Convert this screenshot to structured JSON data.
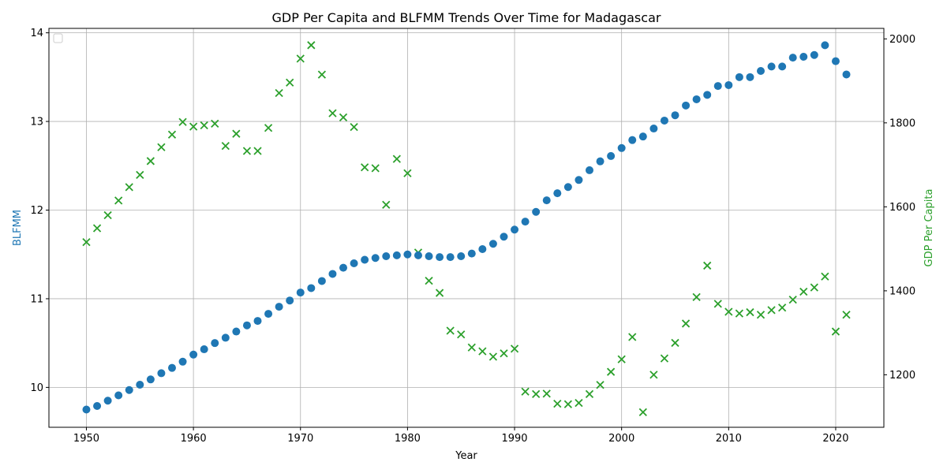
{
  "chart_data": {
    "type": "scatter",
    "title": "GDP Per Capita and BLFMM Trends Over Time for Madagascar",
    "xlabel": "Year",
    "ylabel_left": "BLFMM",
    "ylabel_right": "GDP Per Capita",
    "xlim": [
      1946.5,
      2024.5
    ],
    "ylim_left": [
      9.55,
      14.05
    ],
    "ylim_right": [
      1075,
      2025
    ],
    "xticks": [
      1950,
      1960,
      1970,
      1980,
      1990,
      2000,
      2010,
      2020
    ],
    "yticks_left": [
      10,
      11,
      12,
      13,
      14
    ],
    "yticks_right": [
      1200,
      1400,
      1600,
      1800,
      2000
    ],
    "grid": true,
    "legend": "top-left (empty)",
    "colors": {
      "blfmm": "#1f77b4",
      "gdp": "#2ca02c"
    },
    "series": [
      {
        "axis": "left",
        "marker": "circle",
        "x": [
          1950,
          1951,
          1952,
          1953,
          1954,
          1955,
          1956,
          1957,
          1958,
          1959,
          1960,
          1961,
          1962,
          1963,
          1964,
          1965,
          1966,
          1967,
          1968,
          1969,
          1970,
          1971,
          1972,
          1973,
          1974,
          1975,
          1976,
          1977,
          1978,
          1979,
          1980,
          1981,
          1982,
          1983,
          1984,
          1985,
          1986,
          1987,
          1988,
          1989,
          1990,
          1991,
          1992,
          1993,
          1994,
          1995,
          1996,
          1997,
          1998,
          1999,
          2000,
          2001,
          2002,
          2003,
          2004,
          2005,
          2006,
          2007,
          2008,
          2009,
          2010,
          2011,
          2012,
          2013,
          2014,
          2015,
          2016,
          2017,
          2018,
          2019,
          2020,
          2021
        ],
        "values": [
          9.75,
          9.79,
          9.85,
          9.91,
          9.97,
          10.03,
          10.09,
          10.16,
          10.22,
          10.29,
          10.37,
          10.43,
          10.5,
          10.56,
          10.63,
          10.7,
          10.75,
          10.83,
          10.91,
          10.98,
          11.07,
          11.12,
          11.2,
          11.28,
          11.35,
          11.4,
          11.44,
          11.46,
          11.48,
          11.49,
          11.5,
          11.49,
          11.48,
          11.47,
          11.47,
          11.48,
          11.51,
          11.56,
          11.62,
          11.7,
          11.78,
          11.87,
          11.98,
          12.11,
          12.19,
          12.26,
          12.34,
          12.45,
          12.55,
          12.61,
          12.7,
          12.79,
          12.83,
          12.92,
          13.01,
          13.07,
          13.18,
          13.25,
          13.3,
          13.4,
          13.41,
          13.5,
          13.5,
          13.57,
          13.62,
          13.62,
          13.72,
          13.73,
          13.75,
          13.86,
          13.68,
          13.53
        ]
      },
      {
        "axis": "right",
        "marker": "x",
        "x": [
          1950,
          1951,
          1952,
          1953,
          1954,
          1955,
          1956,
          1957,
          1958,
          1959,
          1960,
          1961,
          1962,
          1963,
          1964,
          1965,
          1966,
          1967,
          1968,
          1969,
          1970,
          1971,
          1972,
          1973,
          1974,
          1975,
          1976,
          1977,
          1978,
          1979,
          1980,
          1981,
          1982,
          1983,
          1984,
          1985,
          1986,
          1987,
          1988,
          1989,
          1990,
          1991,
          1992,
          1993,
          1994,
          1995,
          1996,
          1997,
          1998,
          1999,
          2000,
          2001,
          2002,
          2003,
          2004,
          2005,
          2006,
          2007,
          2008,
          2009,
          2010,
          2011,
          2012,
          2013,
          2014,
          2015,
          2016,
          2017,
          2018,
          2019,
          2020,
          2021
        ],
        "values": [
          1516,
          1549,
          1580,
          1615,
          1647,
          1676,
          1709,
          1742,
          1772,
          1802,
          1791,
          1794,
          1798,
          1745,
          1774,
          1733,
          1733,
          1788,
          1871,
          1896,
          1953,
          1985,
          1915,
          1823,
          1813,
          1790,
          1694,
          1692,
          1605,
          1714,
          1680,
          1491,
          1424,
          1395,
          1305,
          1296,
          1265,
          1256,
          1243,
          1251,
          1262,
          1160,
          1154,
          1155,
          1131,
          1130,
          1133,
          1154,
          1176,
          1207,
          1237,
          1290,
          1111,
          1200,
          1239,
          1276,
          1322,
          1385,
          1460,
          1369,
          1350,
          1346,
          1349,
          1343,
          1354,
          1360,
          1379,
          1398,
          1408,
          1434,
          1303,
          1343
        ]
      }
    ]
  }
}
